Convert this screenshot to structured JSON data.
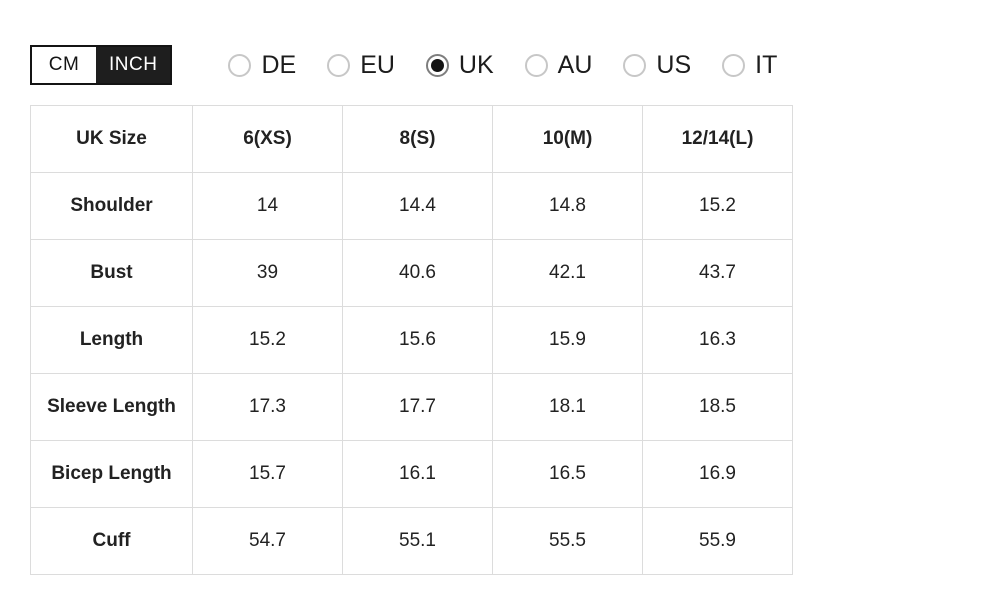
{
  "unit_toggle": {
    "options": [
      {
        "label": "CM",
        "selected": false
      },
      {
        "label": "INCH",
        "selected": true
      }
    ]
  },
  "region_options": [
    {
      "label": "DE",
      "selected": false
    },
    {
      "label": "EU",
      "selected": false
    },
    {
      "label": "UK",
      "selected": true
    },
    {
      "label": "AU",
      "selected": false
    },
    {
      "label": "US",
      "selected": false
    },
    {
      "label": "IT",
      "selected": false
    }
  ],
  "size_table": {
    "header": [
      "UK Size",
      "6(XS)",
      "8(S)",
      "10(M)",
      "12/14(L)"
    ],
    "rows": [
      {
        "label": "Shoulder",
        "values": [
          "14",
          "14.4",
          "14.8",
          "15.2"
        ]
      },
      {
        "label": "Bust",
        "values": [
          "39",
          "40.6",
          "42.1",
          "43.7"
        ]
      },
      {
        "label": "Length",
        "values": [
          "15.2",
          "15.6",
          "15.9",
          "16.3"
        ]
      },
      {
        "label": "Sleeve Length",
        "values": [
          "17.3",
          "17.7",
          "18.1",
          "18.5"
        ]
      },
      {
        "label": "Bicep Length",
        "values": [
          "15.7",
          "16.1",
          "16.5",
          "16.9"
        ]
      },
      {
        "label": "Cuff",
        "values": [
          "54.7",
          "55.1",
          "55.5",
          "55.9"
        ]
      }
    ]
  },
  "colors": {
    "toggle_active_bg": "#1e1e1e",
    "toggle_border": "#141414",
    "table_border": "#dcdcdc",
    "text": "#222222",
    "radio_unselected_ring": "#c7c7c7",
    "radio_selected_ring": "#7e7e7e",
    "radio_dot": "#141414"
  }
}
